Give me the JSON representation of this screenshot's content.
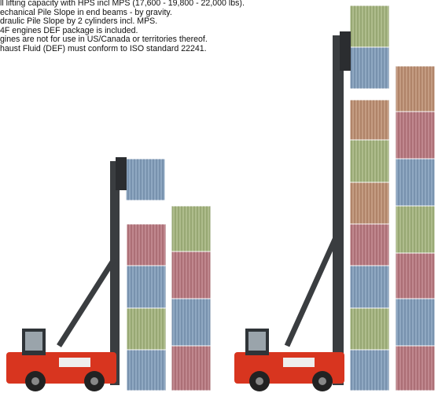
{
  "notes": [
    "ll lifting capacity with HPS incl MPS  (17,600 - 19,800 - 22,000 lbs).",
    "echanical Pile Slope in end beams - by gravity.",
    "draulic Pile Slope by 2 cylinders incl. MPS.",
    "4F engines DEF package is included.",
    "gines are not for use in US/Canada or territories thereof.",
    "haust Fluid (DEF) must conform to ISO standard 22241."
  ]
}
